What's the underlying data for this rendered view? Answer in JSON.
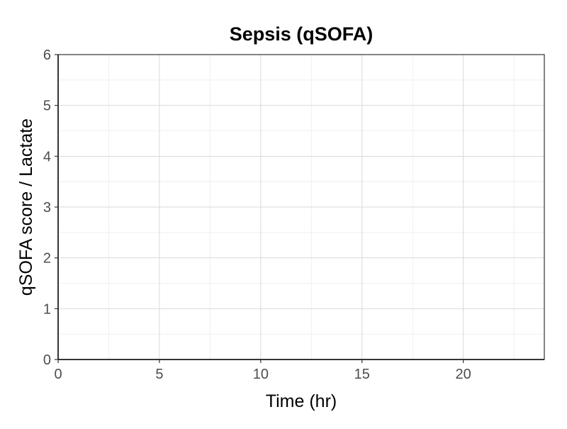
{
  "chart_data": {
    "type": "line",
    "title": "Sepsis (qSOFA)",
    "xlabel": "Time (hr)",
    "ylabel": "qSOFA score / Lactate",
    "xlim": [
      0,
      24
    ],
    "ylim": [
      0,
      6
    ],
    "x_ticks": [
      0,
      5,
      10,
      15,
      20
    ],
    "x_minor_ticks": [
      2.5,
      7.5,
      12.5,
      17.5,
      22.5
    ],
    "y_ticks": [
      0,
      1,
      2,
      3,
      4,
      5,
      6
    ],
    "y_minor_ticks": [
      0.5,
      1.5,
      2.5,
      3.5,
      4.5,
      5.5
    ],
    "grid": true,
    "series": []
  },
  "colors": {
    "panel_background": "#ffffff",
    "grid_major": "#d9d9d9",
    "grid_minor": "#ececec",
    "panel_border": "#333333",
    "axis_line": "#000000",
    "tick_text": "#4d4d4d",
    "title_text": "#000000"
  }
}
